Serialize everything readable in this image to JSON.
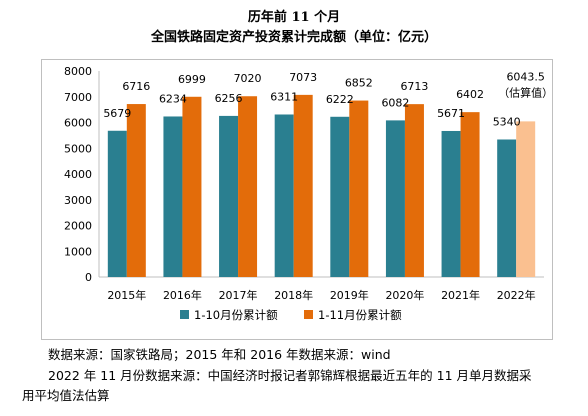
{
  "chart_data": {
    "type": "bar",
    "title": "历年前 11 个月",
    "subtitle": "全国铁路固定资产投资累计完成额（单位：亿元）",
    "categories": [
      "2015年",
      "2016年",
      "2017年",
      "2018年",
      "2019年",
      "2020年",
      "2021年",
      "2022年"
    ],
    "series": [
      {
        "name": "1-10月份累计额",
        "color": "#2a7f90",
        "values": [
          5679,
          6234,
          6256,
          6311,
          6222,
          6082,
          5671,
          5340
        ]
      },
      {
        "name": "1-11月份累计额",
        "color": "#e36c0a",
        "values": [
          6716,
          6999,
          7020,
          7073,
          6852,
          6713,
          6402,
          6043.5
        ]
      }
    ],
    "estimate_color": "#fac090",
    "value_labels": {
      "s0": [
        "5679",
        "6234",
        "6256",
        "6311",
        "6222",
        "6082",
        "5671",
        "5340"
      ],
      "s1": [
        "6716",
        "6999",
        "7020",
        "7073",
        "6852",
        "6713",
        "6402",
        "6043.5"
      ],
      "estimate_note": "（估算值）"
    },
    "yticks": [
      "0",
      "1000",
      "2000",
      "3000",
      "4000",
      "5000",
      "6000",
      "7000",
      "8000"
    ],
    "ylim": [
      0,
      8000
    ],
    "grid": false,
    "legend_position": "bottom"
  },
  "notes": {
    "line1": "数据来源：国家铁路局；2015 年和 2016 年数据来源：wind",
    "line2": "2022 年 11 月份数据来源：中国经济时报记者郭锦辉根据最近五年的 11 月单月数据采",
    "line3": "用平均值法估算"
  }
}
